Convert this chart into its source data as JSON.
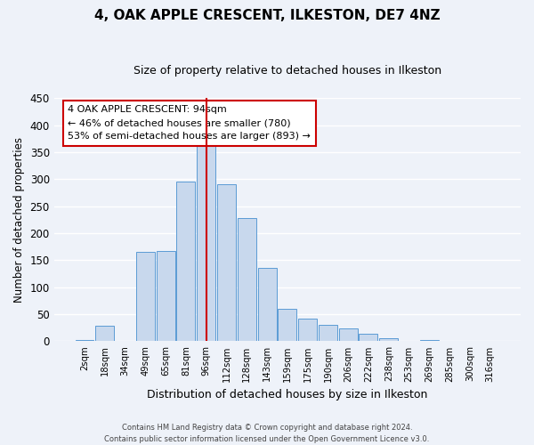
{
  "title": "4, OAK APPLE CRESCENT, ILKESTON, DE7 4NZ",
  "subtitle": "Size of property relative to detached houses in Ilkeston",
  "xlabel": "Distribution of detached houses by size in Ilkeston",
  "ylabel": "Number of detached properties",
  "bar_color": "#c8d8ed",
  "bar_edge_color": "#5b9bd5",
  "background_color": "#eef2f9",
  "grid_color": "#ffffff",
  "categories": [
    "2sqm",
    "18sqm",
    "34sqm",
    "49sqm",
    "65sqm",
    "81sqm",
    "96sqm",
    "112sqm",
    "128sqm",
    "143sqm",
    "159sqm",
    "175sqm",
    "190sqm",
    "206sqm",
    "222sqm",
    "238sqm",
    "253sqm",
    "269sqm",
    "285sqm",
    "300sqm",
    "316sqm"
  ],
  "values": [
    3,
    28,
    0,
    165,
    167,
    295,
    370,
    290,
    228,
    135,
    60,
    42,
    30,
    24,
    14,
    5,
    1,
    2,
    0,
    1,
    1
  ],
  "ylim": [
    0,
    450
  ],
  "yticks": [
    0,
    50,
    100,
    150,
    200,
    250,
    300,
    350,
    400,
    450
  ],
  "vline_index": 6,
  "vline_color": "#cc0000",
  "annotation_title": "4 OAK APPLE CRESCENT: 94sqm",
  "annotation_line1": "← 46% of detached houses are smaller (780)",
  "annotation_line2": "53% of semi-detached houses are larger (893) →",
  "footer_line1": "Contains HM Land Registry data © Crown copyright and database right 2024.",
  "footer_line2": "Contains public sector information licensed under the Open Government Licence v3.0."
}
